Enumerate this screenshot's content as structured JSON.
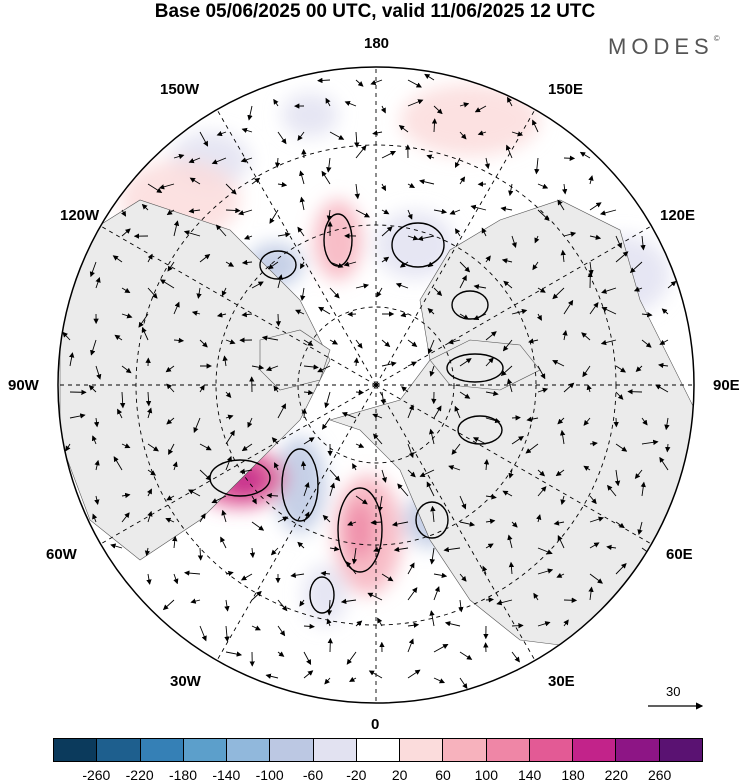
{
  "title": "Base 05/06/2025 00 UTC, valid 11/06/2025 12 UTC",
  "brand": "MODES",
  "brand_mark": "©",
  "longitude_labels": {
    "lon_180": "180",
    "lon_150w": "150W",
    "lon_150e": "150E",
    "lon_120w": "120W",
    "lon_120e": "120E",
    "lon_90w": "90W",
    "lon_90e": "90E",
    "lon_60w": "60W",
    "lon_60e": "60E",
    "lon_30w": "30W",
    "lon_30e": "30E",
    "lon_0": "0"
  },
  "reference_vector_label": "30",
  "colorbar": {
    "colors": [
      "#0b3a5c",
      "#1e5f8e",
      "#3580b6",
      "#5c9fcb",
      "#91b8dc",
      "#bcc8e3",
      "#e2e2f1",
      "#ffffff",
      "#fbdcdc",
      "#f7b2bd",
      "#ef86a6",
      "#e35a95",
      "#c2238a",
      "#8d1585",
      "#5a1272"
    ],
    "tick_labels": [
      "-260",
      "-220",
      "-180",
      "-140",
      "-100",
      "-60",
      "-20",
      "20",
      "60",
      "100",
      "140",
      "180",
      "220",
      "260"
    ]
  },
  "map": {
    "projection": "north-polar-stereographic",
    "land_fill": "#ebebeb"
  }
}
